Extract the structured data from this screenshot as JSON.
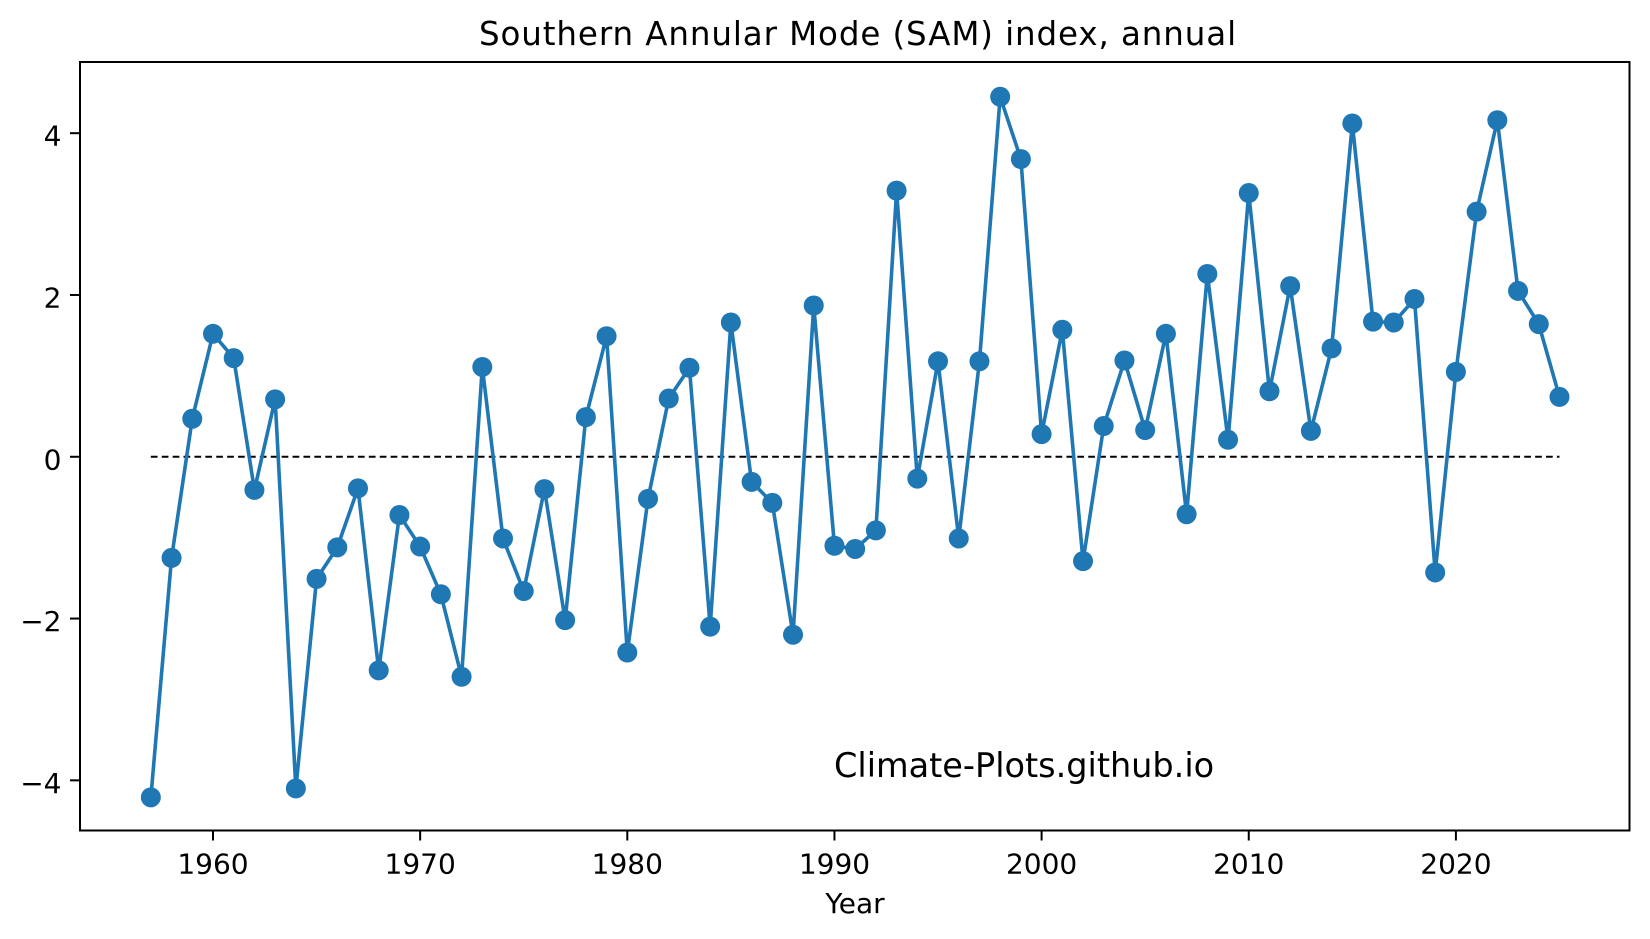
{
  "chart_data": {
    "type": "line",
    "title": "Southern Annular Mode (SAM) index, annual",
    "xlabel": "Year",
    "ylabel": "",
    "watermark": "Climate-Plots.github.io",
    "grid": false,
    "legend": null,
    "background_color": "#ffffff",
    "axes_color": "#000000",
    "xlim": [
      1953.58,
      2028.38
    ],
    "ylim": [
      -4.62,
      4.88
    ],
    "x_ticks": {
      "values": [
        1960,
        1970,
        1980,
        1990,
        2000,
        2010,
        2020
      ],
      "labels": [
        "1960",
        "1970",
        "1980",
        "1990",
        "2000",
        "2010",
        "2020"
      ]
    },
    "y_ticks": {
      "values": [
        -4,
        -2,
        0,
        2,
        4
      ],
      "labels": [
        "−4",
        "−2",
        "0",
        "2",
        "4"
      ]
    },
    "zero_line": {
      "y": 0,
      "x_start": 1957,
      "x_end": 2025,
      "style": "dashed",
      "color": "#000000"
    },
    "series": [
      {
        "name": "SAM index (annual)",
        "color": "#1f77b4",
        "marker": "circle",
        "x": [
          1957,
          1958,
          1959,
          1960,
          1961,
          1962,
          1963,
          1964,
          1965,
          1966,
          1967,
          1968,
          1969,
          1970,
          1971,
          1972,
          1973,
          1974,
          1975,
          1976,
          1977,
          1978,
          1979,
          1980,
          1981,
          1982,
          1983,
          1984,
          1985,
          1986,
          1987,
          1988,
          1989,
          1990,
          1991,
          1992,
          1993,
          1994,
          1995,
          1996,
          1997,
          1998,
          1999,
          2000,
          2001,
          2002,
          2003,
          2004,
          2005,
          2006,
          2007,
          2008,
          2009,
          2010,
          2011,
          2012,
          2013,
          2014,
          2015,
          2016,
          2017,
          2018,
          2019,
          2020,
          2021,
          2022,
          2023,
          2024,
          2025
        ],
        "values": [
          -4.21,
          -1.25,
          0.47,
          1.52,
          1.22,
          -0.41,
          0.71,
          -4.1,
          -1.51,
          -1.12,
          -0.39,
          -2.64,
          -0.72,
          -1.11,
          -1.7,
          -2.72,
          1.11,
          -1.01,
          -1.66,
          -0.4,
          -2.02,
          0.49,
          1.49,
          -2.42,
          -0.52,
          0.72,
          1.1,
          -2.1,
          1.66,
          -0.31,
          -0.57,
          -2.2,
          1.87,
          -1.1,
          -1.14,
          -0.91,
          3.29,
          -0.27,
          1.18,
          -1.01,
          1.18,
          4.45,
          3.68,
          0.28,
          1.57,
          -1.29,
          0.38,
          1.19,
          0.33,
          1.52,
          -0.71,
          2.26,
          0.21,
          3.26,
          0.81,
          2.11,
          0.32,
          1.34,
          4.12,
          1.67,
          1.66,
          1.95,
          -1.43,
          1.05,
          3.03,
          4.16,
          2.05,
          1.64,
          0.74
        ]
      }
    ]
  }
}
